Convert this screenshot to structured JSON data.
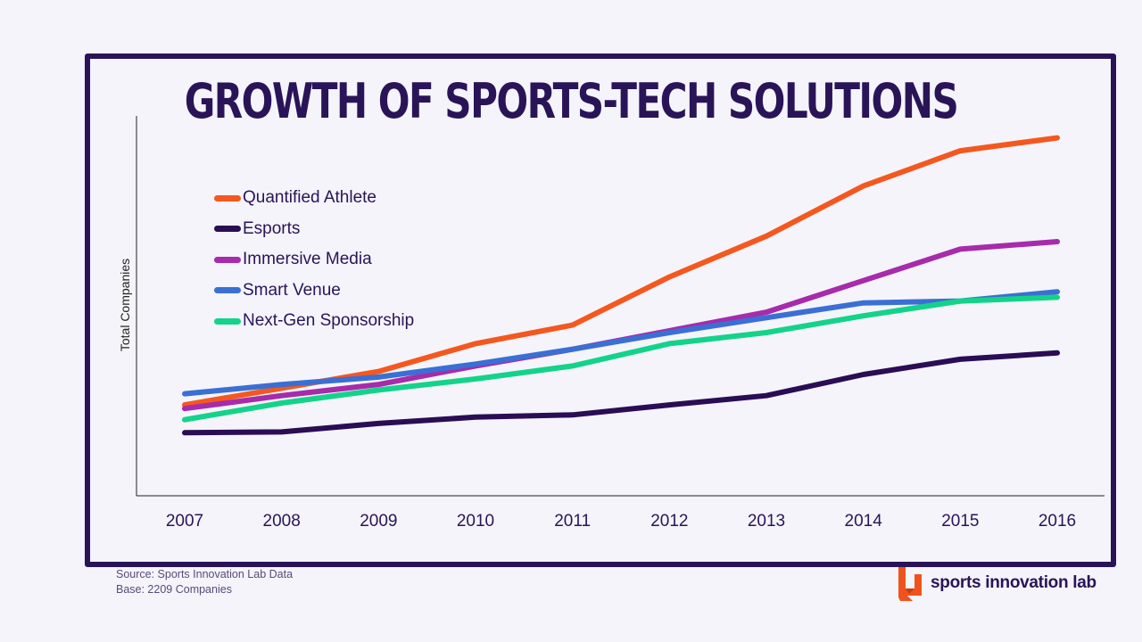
{
  "title": "GROWTH OF SPORTS-TECH SOLUTIONS",
  "footer": {
    "source": "Source: Sports Innovation Lab Data",
    "base": "Base:  2209 Companies"
  },
  "brand": {
    "name": "sports innovation lab",
    "logo_color": "#f0521e"
  },
  "colors": {
    "frame": "#2a1458",
    "background": "#f4f4fa",
    "text": "#2a1458"
  },
  "chart_data": {
    "type": "line",
    "title": "GROWTH OF SPORTS-TECH SOLUTIONS",
    "xlabel": "",
    "ylabel": "Total Companies",
    "y_ticks_shown": false,
    "ylim": [
      0,
      100
    ],
    "grid": false,
    "legend_position": "top-left",
    "categories": [
      "2007",
      "2008",
      "2009",
      "2010",
      "2011",
      "2012",
      "2013",
      "2014",
      "2015",
      "2016"
    ],
    "series": [
      {
        "name": "Quantified Athlete",
        "color": "#f4581f",
        "values": [
          24.5,
          29,
          33.5,
          41,
          46,
          59,
          70,
          83.5,
          93,
          96.5
        ]
      },
      {
        "name": "Esports",
        "color": "#2a0d55",
        "values": [
          17,
          17.2,
          19.5,
          21.2,
          21.8,
          24.5,
          27,
          32.7,
          36.8,
          38.5
        ]
      },
      {
        "name": "Immersive Media",
        "color": "#a72bab",
        "values": [
          23.5,
          27,
          30,
          35,
          39.5,
          44.5,
          49.5,
          58,
          66.5,
          68.5
        ]
      },
      {
        "name": "Smart Venue",
        "color": "#3a6fd4",
        "values": [
          27.5,
          30,
          32,
          35.5,
          39.5,
          44,
          48,
          52,
          52.5,
          55
        ]
      },
      {
        "name": "Next-Gen Sponsorship",
        "color": "#13d38a",
        "values": [
          20.5,
          25,
          28.5,
          31.5,
          35,
          41,
          44,
          48.5,
          52.5,
          53.5
        ]
      }
    ]
  }
}
